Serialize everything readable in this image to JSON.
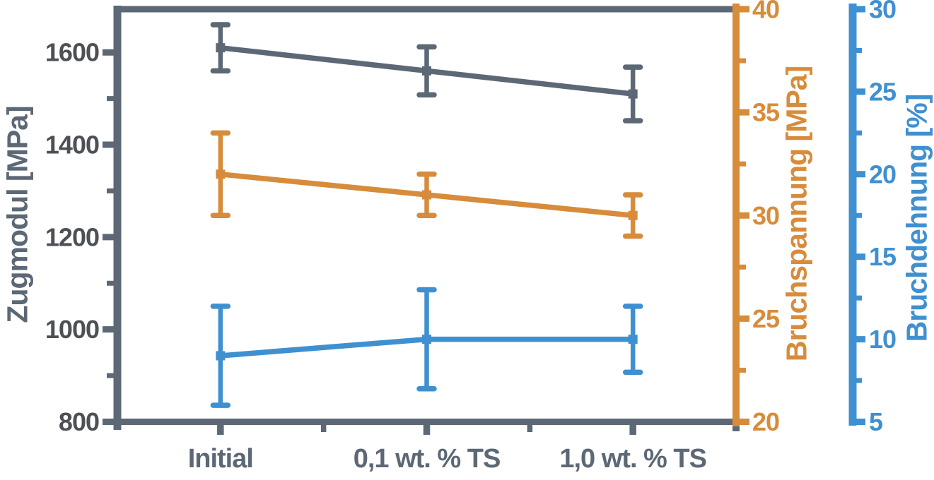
{
  "chart_data": {
    "type": "line",
    "title": "",
    "background_color": "#ffffff",
    "grid": false,
    "legend": false,
    "categories": [
      "Initial",
      "0,1 wt. % TS",
      "1,0 wt. % TS"
    ],
    "series": [
      {
        "name": "Zugmodul",
        "axis": "left",
        "unit": "MPa",
        "color": "#5d6876",
        "values": [
          1610,
          1560,
          1510
        ],
        "errors": [
          50,
          52,
          58
        ],
        "marker": "square"
      },
      {
        "name": "Bruchspannung",
        "axis": "right1",
        "unit": "MPa",
        "color": "#d78c3b",
        "values": [
          32,
          31,
          30
        ],
        "errors": [
          2,
          1,
          1
        ],
        "marker": "square"
      },
      {
        "name": "Bruchdehnung",
        "axis": "right2",
        "unit": "%",
        "color": "#3f90d1",
        "values": [
          9,
          10,
          10
        ],
        "errors": [
          3,
          3,
          2
        ],
        "marker": "square"
      }
    ],
    "axes": {
      "left": {
        "title": "Zugmodul [MPa]",
        "range": [
          800,
          1700
        ],
        "major_ticks": [
          800,
          1000,
          1200,
          1400,
          1600
        ],
        "minor_ticks": [
          900,
          1100,
          1300,
          1500
        ],
        "spine_color": "#5d6876",
        "tick_label_color": "#4d5156",
        "title_color": "#5d6876"
      },
      "right1": {
        "title": "Bruchspannung [MPa]",
        "range": [
          20,
          40
        ],
        "major_ticks": [
          20,
          25,
          30,
          35,
          40
        ],
        "minor_ticks": [
          22.5,
          27.5,
          32.5,
          37.5
        ],
        "spine_color": "#d78c3b",
        "tick_label_color": "#d78c3b",
        "title_color": "#d78c3b"
      },
      "right2": {
        "title": "Bruchdehnung [%]",
        "range": [
          5,
          30
        ],
        "major_ticks": [
          5,
          10,
          15,
          20,
          25,
          30
        ],
        "minor_ticks": [
          7.5,
          12.5,
          17.5,
          22.5,
          27.5
        ],
        "spine_color": "#3f90d1",
        "tick_label_color": "#3f90d1",
        "title_color": "#3f90d1"
      }
    },
    "x_axis": {
      "label_color": "#5d6876",
      "spine_color": "#5d6876"
    }
  }
}
